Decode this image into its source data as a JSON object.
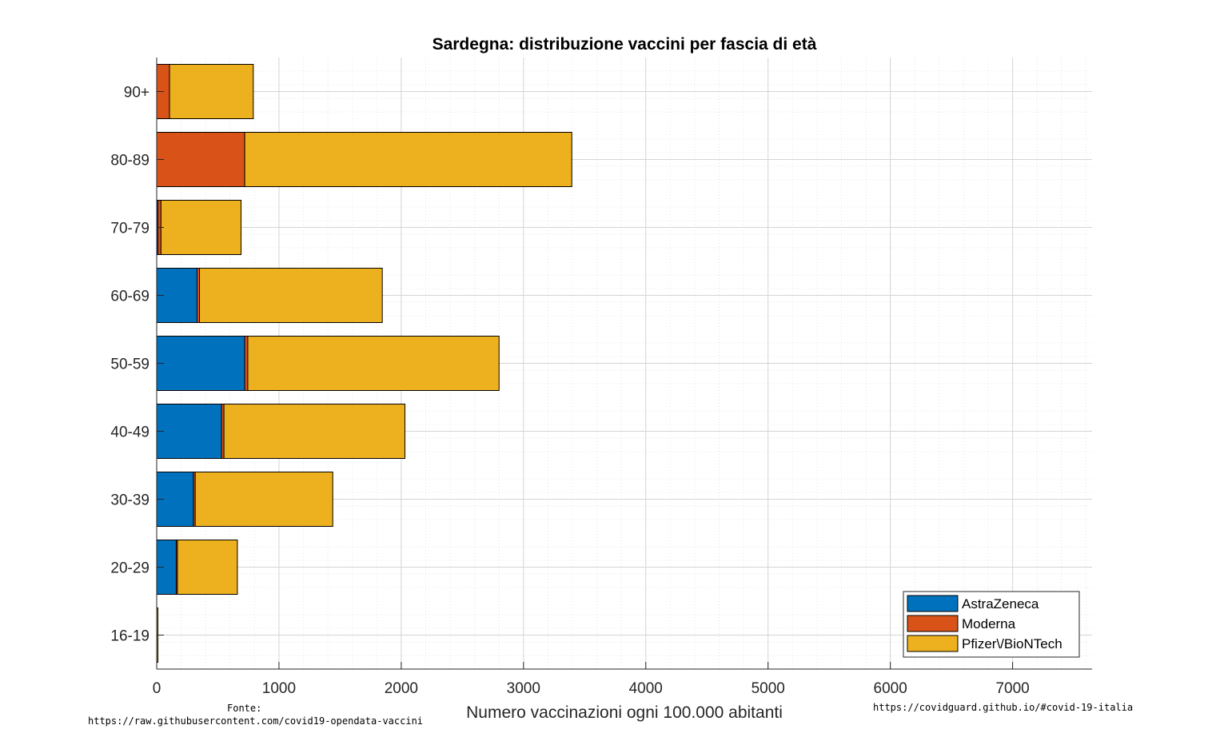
{
  "chart_data": {
    "type": "bar",
    "orientation": "horizontal",
    "stacked": true,
    "title": "Sardegna: distribuzione vaccini per fascia di età",
    "xlabel": "Numero vaccinazioni ogni 100.000 abitanti",
    "ylabel": "",
    "xlim": [
      0,
      7650
    ],
    "xticks": [
      0,
      1000,
      2000,
      3000,
      4000,
      5000,
      6000,
      7000
    ],
    "grid": "on",
    "minor_grid": "on",
    "legend_position": "bottom-right",
    "categories": [
      "16-19",
      "20-29",
      "30-39",
      "40-49",
      "50-59",
      "60-69",
      "70-79",
      "80-89",
      "90+"
    ],
    "series": [
      {
        "name": "AstraZeneca",
        "color": "#0072BD",
        "values": [
          0,
          160,
          300,
          530,
          720,
          330,
          10,
          0,
          0
        ]
      },
      {
        "name": "Moderna",
        "color": "#D95319",
        "values": [
          0,
          10,
          15,
          20,
          25,
          20,
          25,
          720,
          105
        ]
      },
      {
        "name": "Pfizer\\/BioNTech",
        "color": "#EDB120",
        "values": [
          10,
          490,
          1125,
          1480,
          2055,
          1495,
          655,
          2675,
          685
        ]
      }
    ]
  },
  "footer": {
    "source_label": "Fonte:",
    "source_url": "https://raw.githubusercontent.com/covid19-opendata-vaccini",
    "site_url": "https://covidguard.github.io/#covid-19-italia"
  }
}
